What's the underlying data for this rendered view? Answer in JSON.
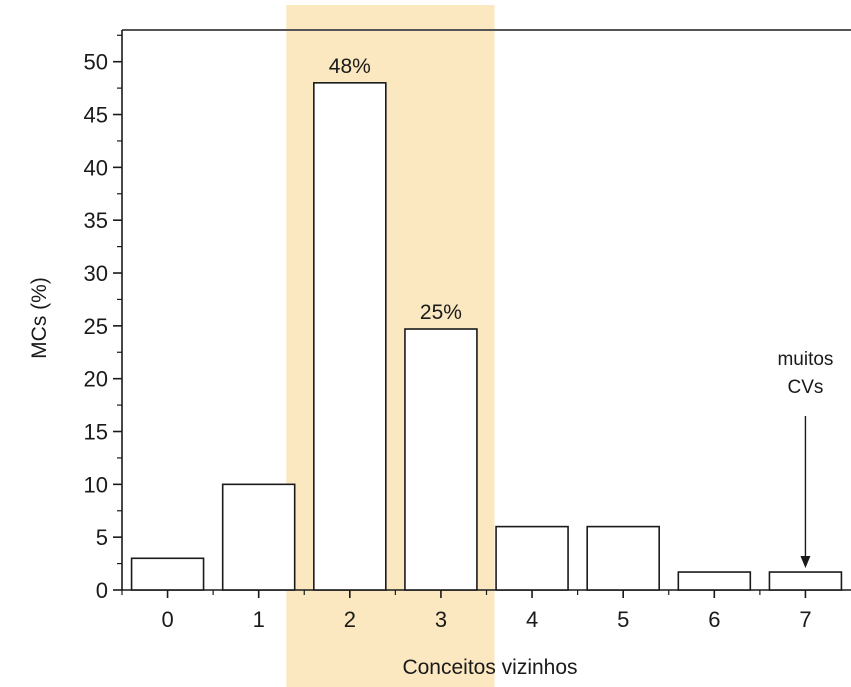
{
  "chart_data": {
    "type": "bar",
    "categories": [
      "0",
      "1",
      "2",
      "3",
      "4",
      "5",
      "6",
      "7"
    ],
    "values": [
      3,
      10,
      48,
      24.7,
      6,
      6,
      1.7,
      1.7
    ],
    "title": "",
    "xlabel": "Conceitos vizinhos",
    "ylabel": "MCs (%)",
    "ylim": [
      0,
      53
    ],
    "yticks": [
      "0",
      "5",
      "10",
      "15",
      "20",
      "25",
      "30",
      "35",
      "40",
      "45",
      "50"
    ],
    "grid": false,
    "bar_fill": "#ffffff",
    "bar_stroke": "#1a1a1a",
    "highlight": {
      "categories": [
        "2",
        "3"
      ],
      "color": "#fbe8c1"
    },
    "data_labels": [
      {
        "category": "2",
        "text": "48%"
      },
      {
        "category": "3",
        "text": "25%"
      }
    ],
    "annotation": {
      "category": "7",
      "lines": [
        "muitos",
        "CVs"
      ],
      "arrow": true
    }
  }
}
